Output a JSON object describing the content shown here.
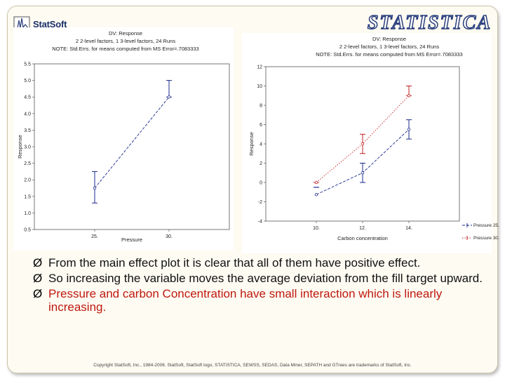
{
  "logo": {
    "text": "StatSoft"
  },
  "brand": {
    "text": "STATISTICA"
  },
  "chart_data": [
    {
      "type": "line",
      "title_lines": [
        "DV: Response",
        "2 2-level factors, 1 3-level factors, 24 Runs",
        "NOTE: Std.Errs. for means computed from MS Error=.7083333"
      ],
      "xlabel": "Pressure",
      "ylabel": "Response",
      "categories": [
        "25.",
        "30."
      ],
      "ylim": [
        0.5,
        5.5
      ],
      "yticks": [
        "0.5",
        "1.0",
        "1.5",
        "2.0",
        "2.5",
        "3.0",
        "3.5",
        "4.0",
        "4.5",
        "5.0",
        "5.5"
      ],
      "series": [
        {
          "name": "Response",
          "values": [
            1.75,
            4.5
          ],
          "error_low": [
            1.3,
            4.5
          ],
          "error_high": [
            2.25,
            5.0
          ]
        }
      ]
    },
    {
      "type": "line",
      "title_lines": [
        "DV: Response",
        "2 2-level factors, 1 3-level factors, 24 Runs",
        "NOTE: Std.Errs. for means computed from MS Error=.7083333"
      ],
      "xlabel": "Carbon concentration",
      "ylabel": "Response",
      "categories": [
        "10.",
        "12.",
        "14."
      ],
      "ylim": [
        -4,
        12
      ],
      "yticks": [
        "-4",
        "-2",
        "0",
        "2",
        "4",
        "6",
        "8",
        "10",
        "12"
      ],
      "series": [
        {
          "name": "Pressure 25.",
          "color": "#1a2a8c",
          "values": [
            -1.25,
            1.0,
            5.5
          ],
          "error_low": [
            -0.5,
            0.0,
            4.5
          ],
          "error_high": [
            -0.5,
            2.0,
            6.5
          ]
        },
        {
          "name": "Pressure 30.",
          "color": "#c02020",
          "values": [
            0.0,
            4.0,
            9.0
          ],
          "error_low": [
            0.0,
            3.0,
            9.0
          ],
          "error_high": [
            0.0,
            5.0,
            10.0
          ]
        }
      ],
      "legend_position": "bottom-right"
    }
  ],
  "bullets": [
    {
      "text": "From the main effect plot it is clear that all of them have positive effect.",
      "color": "black"
    },
    {
      "text": "So increasing the variable moves the average deviation from the fill target upward.",
      "color": "black"
    },
    {
      "text": "Pressure and carbon Concentration have small interaction which is linearly increasing.",
      "color": "red"
    }
  ],
  "bullet_marker": "Ø",
  "footer": {
    "text": "Copyright StatSoft, Inc., 1984-2006. StatSoft, StatSoft logo, STATISTICA, SEWSS, SEDAS, Data Miner, SEPATH and GTrees are trademarks of StatSoft, Inc."
  }
}
